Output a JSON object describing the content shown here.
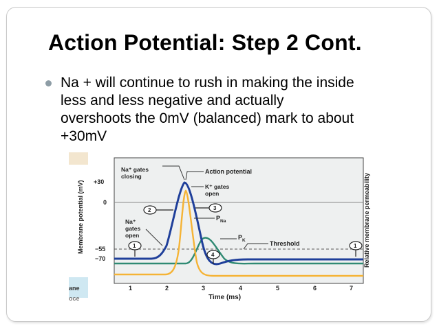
{
  "slide": {
    "title": "Action Potential: Step 2 Cont.",
    "bullet": "Na + will continue to rush in making the inside\nless and less negative and actually\novershoots the 0mV (balanced) mark to about\n+30mV"
  },
  "figure": {
    "ylabel": "Membrane potential (mV)",
    "ylabel_right": "Relative membrane permeability",
    "xlabel": "Time (ms)",
    "y_ticks": [
      "+30",
      "0",
      "−55",
      "−70"
    ],
    "x_ticks": [
      "1",
      "2",
      "3",
      "4",
      "5",
      "6",
      "7"
    ],
    "labels": {
      "na_closing": "Na⁺ gates\nclosing",
      "action_potential": "Action potential",
      "k_open": "K⁺ gates\nopen",
      "na_open": "Na⁺\ngates\nopen",
      "pna": "P",
      "pna_sub": "Na",
      "pk": "P",
      "pk_sub": "K",
      "threshold": "Threshold"
    },
    "markers": [
      "1",
      "2",
      "3",
      "4",
      "1"
    ],
    "edge_fragments": [
      "ane",
      "oce"
    ],
    "colors": {
      "action_potential": "#1f3f9a",
      "p_na": "#f5b335",
      "p_k": "#2f8a73",
      "threshold": "#555555"
    }
  }
}
